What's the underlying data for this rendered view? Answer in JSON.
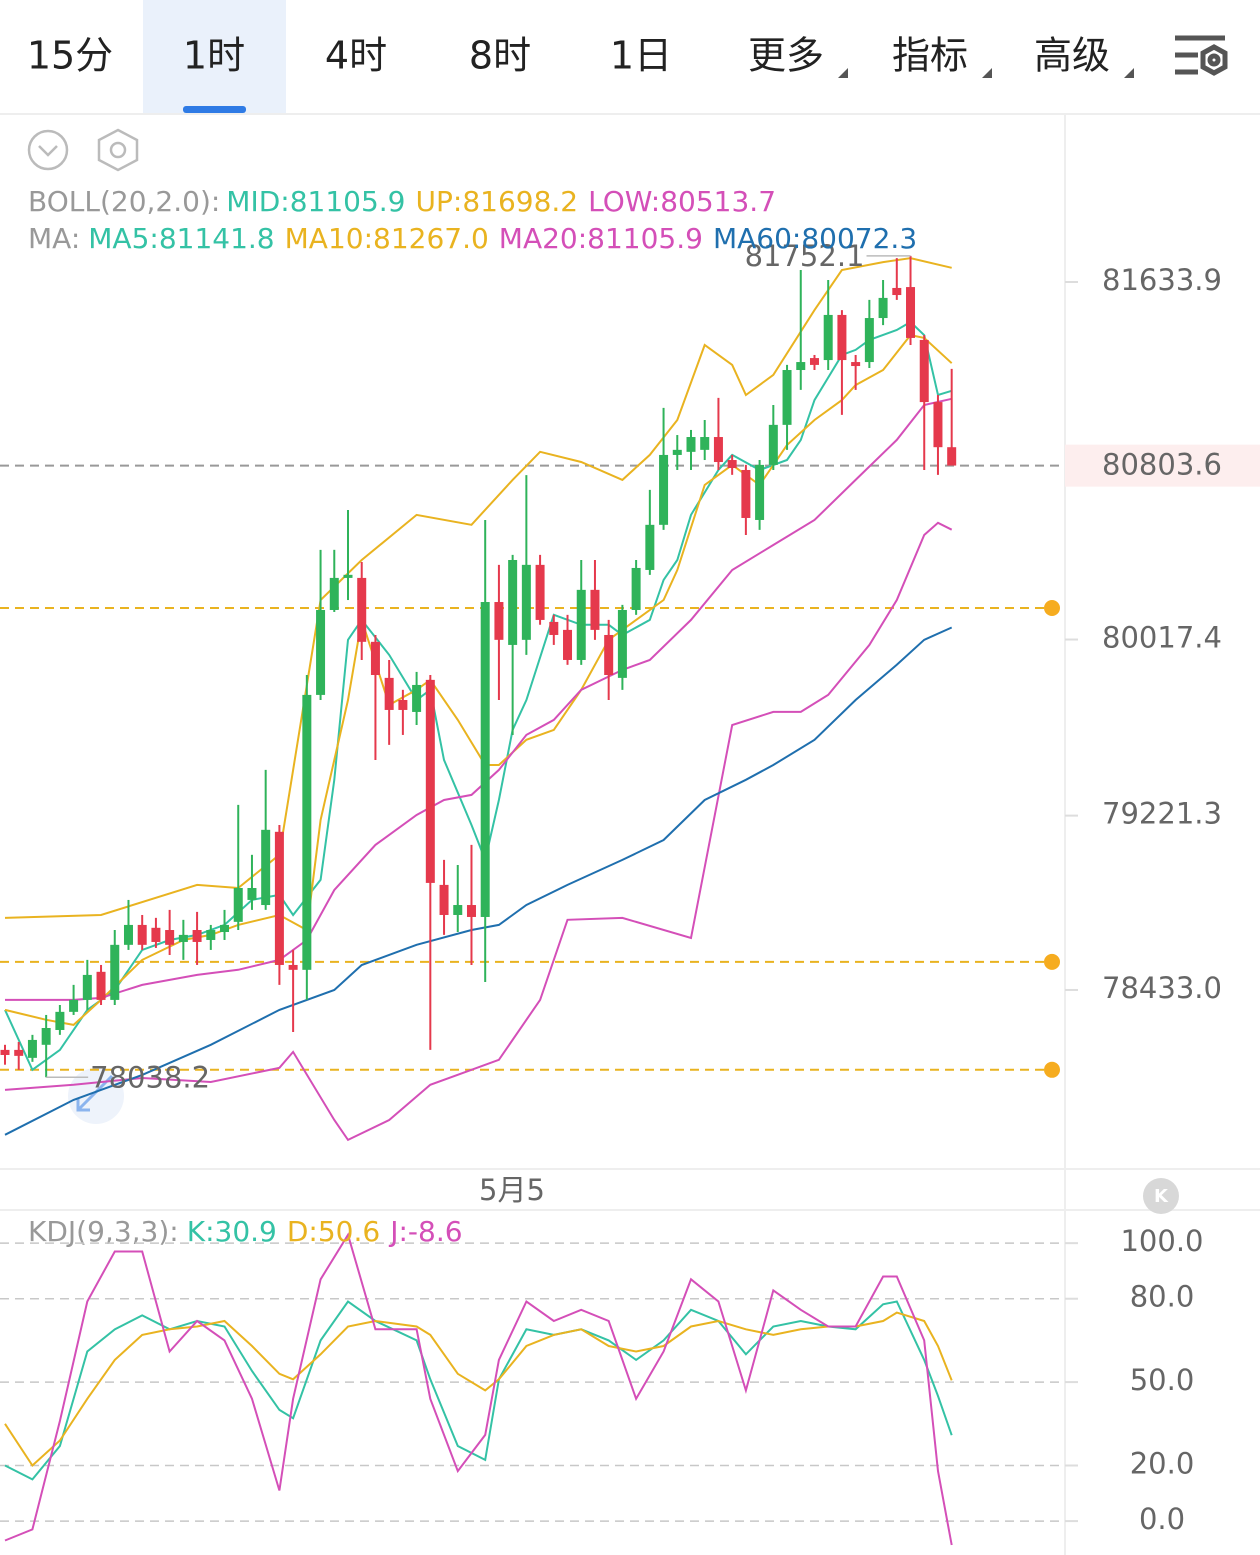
{
  "header": {
    "tabs": [
      "15分",
      "1时",
      "4时",
      "8时",
      "1日",
      "更多",
      "指标",
      "高级"
    ]
  },
  "date_label": "5月5",
  "chart_data": [
    {
      "type": "candlestick",
      "boll_label": "BOLL(20,2.0):",
      "boll_mid": "MID:81105.9",
      "ma_label": "MA:",
      "up_color": "#2fb35a",
      "down_color": "#e5394c",
      "ylim": [
        77628,
        82389
      ],
      "yticks": [
        81633.9,
        80017.4,
        79221.3,
        {
          "value": 78433,
          "label": "78433.0"
        }
      ],
      "current_price": 80803.6,
      "price_lines": [
        80160,
        78560,
        78072
      ],
      "price_line_color": "#e9b320",
      "max_label": 81752.1,
      "min_label": 78038.2,
      "open": [
        78162,
        78162,
        78126,
        78185,
        78252,
        78334,
        78388,
        78515,
        78388,
        78637,
        78727,
        78714,
        78704,
        78650,
        78704,
        78659,
        78695,
        78741,
        78840,
        78817,
        79148,
        78546,
        78524,
        79767,
        80151,
        80296,
        80296,
        80007,
        79844,
        79744,
        79690,
        79835,
        78908,
        78772,
        78817,
        78763,
        80187,
        79993,
        80016,
        80355,
        80097,
        80061,
        79925,
        80242,
        80038,
        79844,
        80151,
        80332,
        80536,
        80852,
        80866,
        80875,
        80933,
        80829,
        80784,
        80558,
        80807,
        80988,
        81236,
        81290,
        81281,
        81485,
        81272,
        81272,
        81471,
        81607,
        81611,
        81372,
        81091,
        80887
      ],
      "high": [
        78185,
        78198,
        78230,
        78320,
        78365,
        78456,
        78569,
        78546,
        78704,
        78840,
        78772,
        78759,
        78795,
        78750,
        78786,
        78727,
        78795,
        79270,
        79044,
        79428,
        79179,
        78614,
        79857,
        80423,
        80423,
        80603,
        80368,
        80038,
        79925,
        79790,
        79871,
        79857,
        79021,
        78998,
        79089,
        80558,
        80355,
        80400,
        80761,
        80400,
        80129,
        80129,
        80377,
        80377,
        80106,
        80174,
        80377,
        80694,
        81065,
        80942,
        80965,
        81010,
        81110,
        80852,
        80807,
        80829,
        81078,
        81259,
        81688,
        81304,
        81643,
        81507,
        81304,
        81553,
        81643,
        81742,
        81752.1,
        81394,
        81123,
        81241
      ],
      "low": [
        78095,
        78072,
        78108,
        78038.2,
        78230,
        78320,
        78343,
        78365,
        78365,
        78614,
        78614,
        78623,
        78591,
        78569,
        78546,
        78614,
        78659,
        78704,
        78795,
        78795,
        78456,
        78243,
        78388,
        79744,
        80142,
        80196,
        79925,
        79473,
        79541,
        79586,
        79631,
        78162,
        78682,
        78695,
        78546,
        78469,
        79744,
        79586,
        79948,
        80084,
        79993,
        79903,
        79903,
        80016,
        79744,
        79790,
        80129,
        80310,
        80513,
        80784,
        80784,
        80829,
        80784,
        80762,
        80490,
        80513,
        80784,
        80875,
        81146,
        81236,
        81236,
        81033,
        81146,
        81245,
        81439,
        81553,
        81349,
        80784,
        80762,
        80807
      ],
      "close": [
        78139,
        78135,
        78207,
        78261,
        78334,
        78388,
        78501,
        78388,
        78637,
        78727,
        78637,
        78650,
        78637,
        78682,
        78650,
        78704,
        78727,
        78894,
        78894,
        79157,
        78546,
        78524,
        79767,
        80151,
        80296,
        80310,
        80007,
        79857,
        79699,
        79699,
        79812,
        78917,
        78772,
        78817,
        78763,
        80187,
        80016,
        80377,
        80355,
        80106,
        80038,
        79925,
        80242,
        80061,
        79857,
        80151,
        80341,
        80536,
        80852,
        80875,
        80933,
        80933,
        80820,
        80793,
        80567,
        80807,
        80988,
        81236,
        81272,
        81259,
        81485,
        81281,
        81254,
        81471,
        81562,
        81575,
        81381,
        81091,
        80887,
        80804
      ],
      "series": [
        {
          "name": "UP:81698.2",
          "color": "#e9b320",
          "x": [
            0,
            7,
            14,
            17,
            20,
            23,
            26,
            30,
            34,
            37,
            39,
            42,
            45,
            47,
            49,
            51,
            53,
            54,
            56,
            59,
            61,
            64,
            66,
            69
          ],
          "values": [
            78759,
            78772,
            78908,
            78894,
            79044,
            80196,
            80377,
            80581,
            80536,
            80739,
            80866,
            80820,
            80739,
            80852,
            81010,
            81349,
            81259,
            81123,
            81214,
            81507,
            81688,
            81724,
            81742,
            81698
          ]
        },
        {
          "name": "LOW:80513.7",
          "color": "#d44fb8",
          "x": [
            0,
            5,
            10,
            15,
            20,
            21,
            24,
            25,
            28,
            31,
            34,
            36,
            39,
            41,
            45,
            50,
            53,
            56,
            58,
            60,
            63,
            65,
            67,
            68,
            69
          ],
          "values": [
            77981,
            78004,
            78035,
            78017,
            78081,
            78153,
            77845,
            77755,
            77845,
            78004,
            78072,
            78117,
            78388,
            78750,
            78759,
            78668,
            79631,
            79690,
            79690,
            79767,
            79993,
            80196,
            80490,
            80545,
            80514
          ]
        },
        {
          "name": "MA5:81141.8",
          "color": "#34c2a5",
          "x": [
            0,
            2,
            4,
            6,
            8,
            10,
            12,
            14,
            16,
            18,
            20,
            21,
            23,
            24,
            25,
            26,
            28,
            30,
            31,
            32,
            34,
            35,
            36,
            37,
            38,
            40,
            42,
            44,
            45,
            47,
            48,
            49,
            50,
            52,
            53,
            55,
            57,
            58,
            59,
            61,
            62,
            63,
            65,
            66,
            67,
            68,
            69
          ],
          "values": [
            78343,
            78072,
            78162,
            78343,
            78433,
            78614,
            78659,
            78682,
            78727,
            78840,
            78863,
            78772,
            78931,
            79383,
            80016,
            80106,
            79948,
            79744,
            79790,
            79473,
            79179,
            79021,
            79292,
            79609,
            79744,
            80129,
            80084,
            80084,
            80038,
            80106,
            80287,
            80377,
            80581,
            80784,
            80852,
            80784,
            80829,
            80920,
            81100,
            81304,
            81327,
            81372,
            81417,
            81453,
            81394,
            81123,
            81142
          ]
        },
        {
          "name": "MA10:81267.0",
          "color": "#e9b320",
          "x": [
            0,
            3,
            5,
            7,
            10,
            13,
            15,
            17,
            20,
            22,
            23,
            25,
            26,
            28,
            30,
            31,
            33,
            35,
            36,
            38,
            40,
            42,
            44,
            46,
            48,
            49,
            51,
            53,
            55,
            57,
            59,
            61,
            62,
            64,
            66,
            67,
            69
          ],
          "values": [
            78343,
            78298,
            78275,
            78388,
            78569,
            78659,
            78682,
            78727,
            78772,
            78704,
            79202,
            79744,
            80106,
            79722,
            79790,
            79835,
            79654,
            79450,
            79450,
            79564,
            79609,
            79790,
            80016,
            80106,
            80196,
            80332,
            80716,
            80807,
            80716,
            80897,
            81010,
            81100,
            81168,
            81236,
            81394,
            81381,
            81267
          ]
        },
        {
          "name": "MA20:81105.9",
          "color": "#d44fb8",
          "x": [
            0,
            5,
            7,
            10,
            14,
            17,
            20,
            22,
            24,
            27,
            30,
            32,
            34,
            36,
            38,
            40,
            42,
            45,
            47,
            50,
            53,
            56,
            59,
            62,
            65,
            67,
            69
          ],
          "values": [
            78388,
            78388,
            78397,
            78456,
            78501,
            78524,
            78569,
            78659,
            78885,
            79089,
            79224,
            79292,
            79315,
            79428,
            79586,
            79654,
            79790,
            79880,
            79925,
            80106,
            80332,
            80445,
            80558,
            80739,
            80920,
            81078,
            81106
          ]
        },
        {
          "name": "MA60:80072.3",
          "color": "#1f6fae",
          "x": [
            0,
            5,
            10,
            15,
            20,
            24,
            26,
            30,
            34,
            36,
            38,
            41,
            45,
            48,
            51,
            54,
            56,
            59,
            62,
            65,
            67,
            69
          ],
          "values": [
            77778,
            77936,
            78049,
            78185,
            78343,
            78433,
            78546,
            78637,
            78704,
            78727,
            78817,
            78908,
            79021,
            79111,
            79292,
            79383,
            79450,
            79564,
            79744,
            79903,
            80016,
            80072
          ]
        }
      ]
    },
    {
      "type": "line",
      "title": "KDJ(9,3,3):",
      "ylim": [
        -12.2,
        111.2
      ],
      "yticks": [
        {
          "value": 100,
          "label": "100.0"
        },
        {
          "value": 80,
          "label": "80.0"
        },
        {
          "value": 50,
          "label": "50.0"
        },
        {
          "value": 20,
          "label": "20.0"
        },
        {
          "value": 0,
          "label": "0.0"
        }
      ],
      "grid": true,
      "series": [
        {
          "name": "K:30.9",
          "color": "#34c2a5",
          "x": [
            0,
            2,
            4,
            6,
            8,
            10,
            12,
            14,
            16,
            18,
            20,
            21,
            23,
            25,
            27,
            30,
            31,
            33,
            35,
            36,
            38,
            40,
            42,
            44,
            46,
            48,
            50,
            52,
            54,
            56,
            58,
            60,
            62,
            64,
            65,
            67,
            68,
            69
          ],
          "values": [
            20,
            15,
            27,
            61,
            69,
            74,
            69,
            72,
            70,
            54,
            40,
            37,
            65,
            79,
            72,
            65,
            51,
            27,
            22,
            51,
            69,
            67,
            69,
            65,
            58,
            65,
            76,
            72,
            60,
            70,
            72,
            70,
            69,
            78,
            79,
            58,
            45,
            30.9
          ]
        },
        {
          "name": "D:50.6",
          "color": "#e9b320",
          "x": [
            0,
            2,
            4,
            6,
            8,
            10,
            12,
            14,
            16,
            18,
            20,
            21,
            23,
            25,
            27,
            30,
            31,
            33,
            35,
            36,
            38,
            40,
            42,
            44,
            46,
            48,
            50,
            52,
            54,
            56,
            58,
            60,
            62,
            64,
            65,
            67,
            68,
            69
          ],
          "values": [
            35,
            20,
            29,
            44,
            58,
            67,
            69,
            70,
            72,
            63,
            53,
            51,
            60,
            70,
            72,
            70,
            67,
            53,
            47,
            51,
            63,
            67,
            69,
            63,
            61,
            63,
            70,
            72,
            69,
            67,
            69,
            70,
            70,
            72,
            75,
            72,
            63,
            50.6
          ]
        },
        {
          "name": "J:-8.6",
          "color": "#d44fb8",
          "x": [
            0,
            2,
            4,
            6,
            8,
            10,
            12,
            14,
            16,
            18,
            20,
            21,
            23,
            25,
            27,
            30,
            31,
            33,
            35,
            36,
            38,
            40,
            42,
            44,
            46,
            48,
            50,
            52,
            54,
            56,
            58,
            60,
            62,
            64,
            65,
            67,
            68,
            69
          ],
          "values": [
            -7,
            -3,
            36,
            79,
            97,
            97,
            61,
            72,
            65,
            44,
            11,
            44,
            87,
            103,
            69,
            69,
            44,
            18,
            31,
            58,
            79,
            72,
            76,
            72,
            44,
            61,
            87,
            79,
            47,
            83,
            76,
            70,
            70,
            88,
            88,
            65,
            18,
            -8.6
          ]
        }
      ]
    }
  ]
}
